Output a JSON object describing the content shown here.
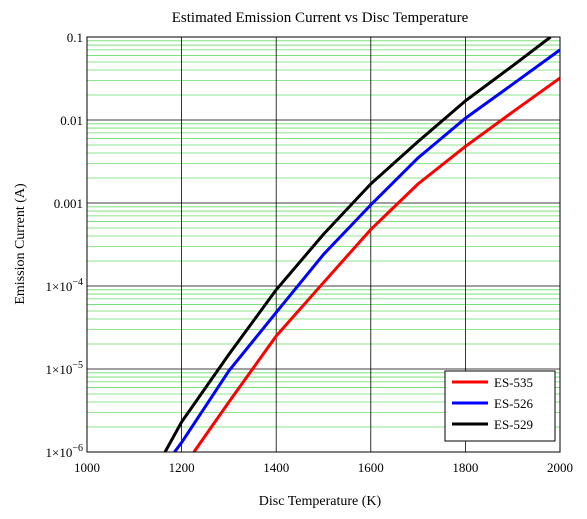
{
  "chart_data": {
    "type": "line",
    "title": "Estimated Emission Current vs Disc Temperature",
    "xlabel": "Disc Temperature (K)",
    "ylabel": "Emission Current (A)",
    "xlim": [
      1000,
      2000
    ],
    "ylim": [
      1e-06,
      0.1
    ],
    "y_scale": "log",
    "grid": true,
    "x_ticks": [
      {
        "value": 1000,
        "label": "1000"
      },
      {
        "value": 1200,
        "label": "1200"
      },
      {
        "value": 1400,
        "label": "1400"
      },
      {
        "value": 1600,
        "label": "1600"
      },
      {
        "value": 1800,
        "label": "1800"
      },
      {
        "value": 2000,
        "label": "2000"
      }
    ],
    "y_ticks": [
      {
        "value": 0.1,
        "label": "0.1"
      },
      {
        "value": 0.01,
        "label": "0.01"
      },
      {
        "value": 0.001,
        "label": "0.001"
      },
      {
        "value": 0.0001,
        "base": "1×10",
        "exp": "−4"
      },
      {
        "value": 1e-05,
        "base": "1×10",
        "exp": "−5"
      },
      {
        "value": 1e-06,
        "base": "1×10",
        "exp": "−6"
      }
    ],
    "legend_position": "bottom-right",
    "series": [
      {
        "name": "ES-535",
        "color": "#ff0000",
        "x": [
          1226,
          1300,
          1400,
          1500,
          1600,
          1700,
          1800,
          1900,
          2000
        ],
        "y": [
          1e-06,
          4e-06,
          2.5e-05,
          0.00011,
          0.00048,
          0.0017,
          0.0048,
          0.0125,
          0.032
        ]
      },
      {
        "name": "ES-526",
        "color": "#0000ff",
        "x": [
          1185,
          1200,
          1300,
          1400,
          1500,
          1600,
          1700,
          1800,
          1900,
          2000
        ],
        "y": [
          1e-06,
          1.3e-06,
          9.5e-06,
          4.8e-05,
          0.00024,
          0.00095,
          0.0035,
          0.0105,
          0.027,
          0.07
        ]
      },
      {
        "name": "ES-529",
        "color": "#000000",
        "x": [
          1165,
          1200,
          1300,
          1400,
          1500,
          1600,
          1700,
          1800,
          1900,
          1980
        ],
        "y": [
          1e-06,
          2.3e-06,
          1.5e-05,
          9e-05,
          0.00042,
          0.0017,
          0.0055,
          0.017,
          0.045,
          0.1
        ]
      }
    ]
  }
}
